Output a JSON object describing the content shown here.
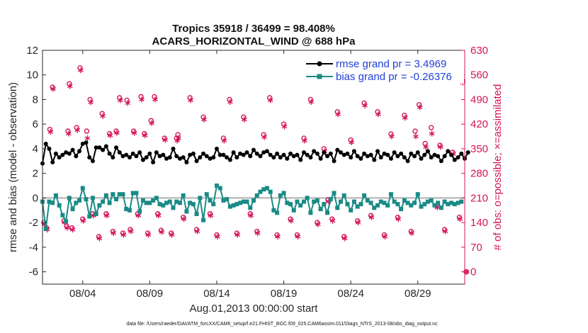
{
  "chart_data": {
    "type": "line",
    "title": "Tropics 35918 / 36499 = 98.408%",
    "subtitle": "ACARS_HORIZONTAL_WIND @ 688 hPa",
    "xlabel": "Aug.01,2013 00:00:00 start",
    "ylabel_left": "rmse and bias (model - observation)",
    "ylabel_right": "# of obs: o=possible; ×=assimilated",
    "footer": "data file: /Users/raeder/DAI/ATM_forcXX/CAM6_setup/f.e21.FHIST_BGC.f09_025.CAM6assim.011/Diags_NTrS_2013-08/obs_diag_output.nc",
    "x_tick_labels": [
      "08/04",
      "08/09",
      "08/14",
      "08/19",
      "08/24",
      "08/29"
    ],
    "x_tick_days": [
      4,
      9,
      14,
      19,
      24,
      29
    ],
    "xlim": [
      1,
      32.5
    ],
    "ylim_left": [
      -7,
      12
    ],
    "yticks_left": [
      -6,
      -4,
      -2,
      0,
      2,
      4,
      6,
      8,
      10,
      12
    ],
    "ylim_right": [
      -35,
      630
    ],
    "yticks_right": [
      0,
      70,
      140,
      210,
      280,
      350,
      420,
      490,
      560,
      630
    ],
    "colors": {
      "rmse": "#000000",
      "bias": "#1a8a85",
      "obs": "#d4145a",
      "zero_line": "#b0b0b0",
      "legend_text": "#1f3fd6"
    },
    "legend": {
      "position": "top-right",
      "rmse_label": "rmse grand pr = 3.4969",
      "bias_label": "bias grand pr = -0.26376"
    },
    "series": [
      {
        "name": "rmse",
        "axis": "left",
        "start_day": 1.0,
        "step_days": 0.25,
        "values": [
          2.8,
          4.4,
          4.0,
          2.9,
          3.6,
          3.3,
          3.5,
          3.7,
          3.6,
          3.9,
          3.4,
          3.8,
          4.4,
          4.5,
          3.3,
          3.0,
          4.1,
          4.1,
          3.9,
          4.2,
          3.6,
          3.3,
          4.1,
          3.7,
          3.4,
          3.5,
          3.3,
          3.6,
          3.4,
          3.7,
          3.1,
          3.3,
          3.6,
          2.9,
          3.7,
          3.4,
          3.5,
          3.2,
          3.3,
          4.0,
          3.4,
          3.2,
          3.3,
          2.9,
          3.5,
          3.6,
          3.0,
          3.3,
          3.6,
          3.4,
          3.2,
          3.3,
          4.0,
          3.5,
          3.5,
          3.3,
          3.1,
          3.7,
          3.3,
          3.6,
          3.5,
          3.7,
          3.4,
          3.9,
          3.6,
          3.4,
          3.7,
          3.8,
          3.5,
          3.3,
          3.6,
          3.3,
          3.5,
          3.2,
          3.6,
          3.4,
          3.5,
          3.1,
          3.7,
          3.5,
          3.3,
          3.8,
          3.6,
          3.2,
          3.7,
          3.4,
          3.6,
          3.0,
          3.9,
          3.7,
          3.5,
          3.6,
          3.3,
          3.8,
          3.4,
          3.2,
          3.6,
          3.4,
          3.5,
          3.1,
          3.8,
          3.3,
          3.6,
          3.5,
          3.2,
          3.7,
          3.4,
          3.6,
          3.3,
          3.0,
          3.6,
          3.4,
          3.7,
          3.2,
          3.5,
          3.8,
          3.3,
          3.5,
          3.4,
          3.0,
          3.4,
          3.8,
          3.5,
          3.1,
          3.3,
          3.6,
          3.2,
          3.7
        ]
      },
      {
        "name": "bias",
        "axis": "left",
        "start_day": 1.0,
        "step_days": 0.25,
        "values": [
          -0.3,
          -2.5,
          -0.3,
          -0.4,
          0.2,
          -0.6,
          -1.4,
          -1.9,
          0.0,
          -0.9,
          -0.4,
          -0.2,
          0.8,
          -0.1,
          -1.5,
          0.0,
          -1.3,
          -0.6,
          -0.3,
          0.2,
          -0.4,
          0.3,
          -0.1,
          0.3,
          0.3,
          -0.9,
          -1.0,
          0.4,
          0.4,
          -1.1,
          -0.2,
          -0.4,
          -0.4,
          -0.2,
          0.0,
          -0.5,
          -0.6,
          -0.4,
          -0.3,
          -0.8,
          -0.3,
          -0.4,
          0.2,
          -1.1,
          -0.4,
          -0.5,
          -1.3,
          0.0,
          -1.8,
          0.3,
          -0.2,
          -0.5,
          1.0,
          0.8,
          -0.2,
          -0.1,
          -0.7,
          -0.6,
          -0.5,
          -0.4,
          -0.3,
          -0.3,
          -0.8,
          -0.2,
          0.2,
          0.5,
          0.7,
          0.8,
          0.5,
          -1.0,
          -1.2,
          0.2,
          0.4,
          -0.4,
          -0.5,
          -1.0,
          -0.3,
          -0.6,
          -0.3,
          0.0,
          -1.2,
          -0.3,
          -0.2,
          -0.9,
          -0.5,
          -1.2,
          -0.1,
          0.4,
          -0.8,
          -0.3,
          0.2,
          -0.5,
          -1.0,
          -0.3,
          -0.7,
          -0.5,
          0.2,
          -0.2,
          -0.4,
          -0.8,
          -0.6,
          -0.3,
          -0.4,
          -0.6,
          0.3,
          -0.3,
          -0.5,
          -0.9,
          -0.2,
          -0.4,
          -0.6,
          -0.4,
          0.3,
          -0.7,
          -0.5,
          -0.3,
          -0.2,
          -0.6,
          -0.4,
          -0.8,
          -0.3,
          -0.5,
          -0.4,
          -0.5,
          -0.4,
          -0.3
        ]
      },
      {
        "name": "obs_possible",
        "axis": "right",
        "marker": "circle",
        "points": [
          [
            1.1,
            140
          ],
          [
            1.3,
            125
          ],
          [
            1.55,
            405
          ],
          [
            1.75,
            525
          ],
          [
            2.6,
            145
          ],
          [
            2.8,
            130
          ],
          [
            2.9,
            400
          ],
          [
            3.0,
            535
          ],
          [
            3.2,
            125
          ],
          [
            3.55,
            410
          ],
          [
            3.8,
            580
          ],
          [
            4.0,
            150
          ],
          [
            4.3,
            400
          ],
          [
            4.55,
            490
          ],
          [
            4.75,
            165
          ],
          [
            5.2,
            100
          ],
          [
            5.45,
            450
          ],
          [
            5.75,
            165
          ],
          [
            6.0,
            393
          ],
          [
            6.25,
            115
          ],
          [
            6.5,
            400
          ],
          [
            6.75,
            495
          ],
          [
            7.0,
            110
          ],
          [
            7.3,
            488
          ],
          [
            7.55,
            120
          ],
          [
            7.8,
            400
          ],
          [
            8.1,
            165
          ],
          [
            8.35,
            498
          ],
          [
            8.6,
            393
          ],
          [
            8.85,
            110
          ],
          [
            9.1,
            430
          ],
          [
            9.35,
            498
          ],
          [
            9.6,
            165
          ],
          [
            9.85,
            118
          ],
          [
            10.1,
            380
          ],
          [
            10.6,
            110
          ],
          [
            11.0,
            380
          ],
          [
            11.1,
            390
          ],
          [
            11.5,
            155
          ],
          [
            12.0,
            495
          ],
          [
            12.5,
            120
          ],
          [
            13.0,
            440
          ],
          [
            13.5,
            165
          ],
          [
            14.0,
            105
          ],
          [
            14.5,
            380
          ],
          [
            14.95,
            490
          ],
          [
            15.5,
            110
          ],
          [
            16.0,
            440
          ],
          [
            16.5,
            165
          ],
          [
            17.0,
            115
          ],
          [
            17.5,
            390
          ],
          [
            17.95,
            495
          ],
          [
            18.5,
            105
          ],
          [
            19.0,
            420
          ],
          [
            19.5,
            150
          ],
          [
            20.0,
            105
          ],
          [
            20.5,
            380
          ],
          [
            21.0,
            490
          ],
          [
            21.5,
            140
          ],
          [
            22.0,
            350
          ],
          [
            22.3,
            205
          ],
          [
            22.6,
            150
          ],
          [
            23.0,
            455
          ],
          [
            23.5,
            100
          ],
          [
            24.0,
            375
          ],
          [
            24.5,
            145
          ],
          [
            25.0,
            480
          ],
          [
            25.5,
            160
          ],
          [
            26.0,
            455
          ],
          [
            26.5,
            105
          ],
          [
            27.0,
            392
          ],
          [
            27.5,
            155
          ],
          [
            28.0,
            445
          ],
          [
            28.5,
            115
          ],
          [
            28.8,
            400
          ],
          [
            29.1,
            475
          ],
          [
            29.55,
            365
          ],
          [
            30.0,
            410
          ],
          [
            30.4,
            188
          ],
          [
            30.65,
            360
          ],
          [
            31.0,
            120
          ],
          [
            31.6,
            340
          ],
          [
            32.1,
            155
          ],
          [
            32.3,
            545
          ],
          [
            32.6,
            0
          ]
        ]
      },
      {
        "name": "obs_assimilated",
        "axis": "right",
        "marker": "asterisk",
        "points": [
          [
            1.15,
            135
          ],
          [
            1.35,
            120
          ],
          [
            1.6,
            398
          ],
          [
            1.8,
            520
          ],
          [
            2.65,
            140
          ],
          [
            2.85,
            125
          ],
          [
            2.95,
            393
          ],
          [
            3.05,
            528
          ],
          [
            3.25,
            120
          ],
          [
            3.6,
            403
          ],
          [
            3.85,
            573
          ],
          [
            4.05,
            145
          ],
          [
            4.35,
            380
          ],
          [
            4.6,
            482
          ],
          [
            4.8,
            160
          ],
          [
            5.25,
            95
          ],
          [
            5.5,
            443
          ],
          [
            5.8,
            160
          ],
          [
            6.05,
            388
          ],
          [
            6.3,
            110
          ],
          [
            6.55,
            395
          ],
          [
            6.8,
            488
          ],
          [
            7.05,
            105
          ],
          [
            7.35,
            480
          ],
          [
            7.6,
            115
          ],
          [
            7.85,
            395
          ],
          [
            8.15,
            160
          ],
          [
            8.4,
            490
          ],
          [
            8.65,
            388
          ],
          [
            8.9,
            105
          ],
          [
            9.15,
            423
          ],
          [
            9.4,
            490
          ],
          [
            9.65,
            160
          ],
          [
            9.9,
            113
          ],
          [
            10.15,
            375
          ],
          [
            10.65,
            105
          ],
          [
            11.05,
            373
          ],
          [
            11.15,
            380
          ],
          [
            11.55,
            150
          ],
          [
            12.05,
            488
          ],
          [
            12.55,
            115
          ],
          [
            13.05,
            433
          ],
          [
            13.55,
            160
          ],
          [
            14.05,
            100
          ],
          [
            14.55,
            373
          ],
          [
            15.0,
            483
          ],
          [
            15.55,
            105
          ],
          [
            16.05,
            433
          ],
          [
            16.55,
            160
          ],
          [
            17.05,
            110
          ],
          [
            17.55,
            383
          ],
          [
            18.0,
            488
          ],
          [
            18.55,
            100
          ],
          [
            19.05,
            413
          ],
          [
            19.55,
            145
          ],
          [
            20.05,
            100
          ],
          [
            20.55,
            373
          ],
          [
            21.05,
            483
          ],
          [
            21.55,
            135
          ],
          [
            22.05,
            343
          ],
          [
            22.35,
            200
          ],
          [
            22.65,
            145
          ],
          [
            23.05,
            448
          ],
          [
            23.55,
            95
          ],
          [
            24.05,
            368
          ],
          [
            24.55,
            140
          ],
          [
            25.05,
            473
          ],
          [
            25.55,
            155
          ],
          [
            26.05,
            448
          ],
          [
            26.55,
            100
          ],
          [
            27.05,
            385
          ],
          [
            27.55,
            150
          ],
          [
            28.05,
            438
          ],
          [
            28.55,
            110
          ],
          [
            28.85,
            385
          ],
          [
            29.15,
            468
          ],
          [
            29.6,
            355
          ],
          [
            30.05,
            393
          ],
          [
            30.45,
            183
          ],
          [
            30.7,
            355
          ],
          [
            31.05,
            115
          ],
          [
            31.65,
            335
          ],
          [
            32.15,
            150
          ],
          [
            32.35,
            538
          ],
          [
            32.65,
            0
          ]
        ]
      }
    ]
  }
}
